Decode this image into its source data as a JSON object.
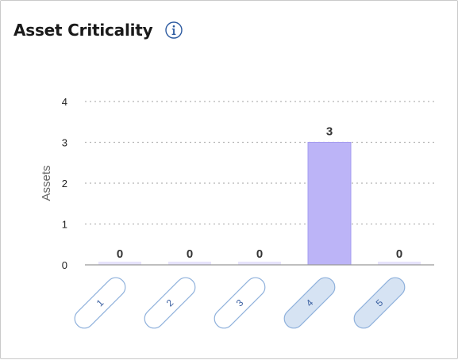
{
  "header": {
    "title": "Asset Criticality",
    "info_icon": "info-icon"
  },
  "chart_data": {
    "type": "bar",
    "title": "Asset Criticality",
    "ylabel": "Assets",
    "xlabel": "",
    "categories": [
      "1",
      "2",
      "3",
      "4",
      "5"
    ],
    "values": [
      0,
      0,
      0,
      3,
      0
    ],
    "selected_categories": [
      "4",
      "5"
    ],
    "yticks": [
      "0",
      "1",
      "2",
      "3",
      "4"
    ],
    "ylim": [
      0,
      4
    ],
    "grid": true,
    "legend": "none",
    "colors": {
      "bar": "#bcb4f7",
      "bar_zero": "#e6e3fb",
      "bar_edge": "#a59cf0",
      "pill_fill": "#ffffff",
      "pill_fill_selected": "#d6e3f3",
      "pill_stroke": "#8fb1dc",
      "grid": "#b5b5b5",
      "axis": "#999999",
      "info_icon": "#2c5aa0"
    }
  }
}
